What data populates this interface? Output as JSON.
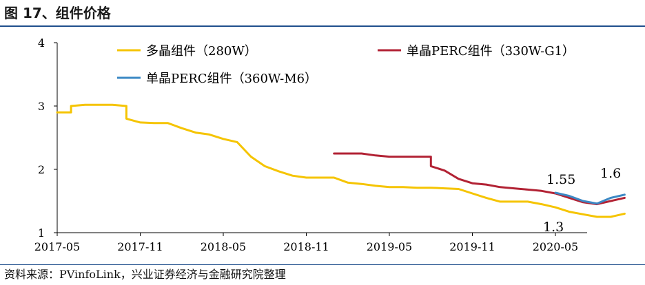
{
  "title": "图 17、组件价格",
  "source": "资料来源：PVinfoLink，兴业证券经济与金融研究院整理",
  "chart_data": {
    "type": "line",
    "title": "",
    "xlabel": "",
    "ylabel": "",
    "ylim": [
      1,
      4
    ],
    "yticks": [
      1,
      2,
      3,
      4
    ],
    "xlim": [
      "2017-05",
      "2020-10"
    ],
    "xticks": [
      "2017-05",
      "2017-11",
      "2018-05",
      "2018-11",
      "2019-05",
      "2019-11",
      "2020-05"
    ],
    "grid": false,
    "legend": "top",
    "series": [
      {
        "name": "多晶组件（280W）",
        "color": "#F5C400",
        "points": [
          [
            "2017-05",
            2.9
          ],
          [
            "2017-06",
            2.9
          ],
          [
            "2017-06",
            3.0
          ],
          [
            "2017-07",
            3.02
          ],
          [
            "2017-08",
            3.02
          ],
          [
            "2017-09",
            3.02
          ],
          [
            "2017-10",
            3.0
          ],
          [
            "2017-10",
            2.8
          ],
          [
            "2017-11",
            2.74
          ],
          [
            "2017-12",
            2.73
          ],
          [
            "2018-01",
            2.73
          ],
          [
            "2018-02",
            2.65
          ],
          [
            "2018-03",
            2.58
          ],
          [
            "2018-04",
            2.55
          ],
          [
            "2018-05",
            2.48
          ],
          [
            "2018-06",
            2.43
          ],
          [
            "2018-07",
            2.2
          ],
          [
            "2018-08",
            2.05
          ],
          [
            "2018-09",
            1.97
          ],
          [
            "2018-10",
            1.9
          ],
          [
            "2018-11",
            1.87
          ],
          [
            "2018-12",
            1.87
          ],
          [
            "2019-01",
            1.87
          ],
          [
            "2019-02",
            1.79
          ],
          [
            "2019-03",
            1.77
          ],
          [
            "2019-04",
            1.74
          ],
          [
            "2019-05",
            1.72
          ],
          [
            "2019-06",
            1.72
          ],
          [
            "2019-07",
            1.71
          ],
          [
            "2019-08",
            1.71
          ],
          [
            "2019-09",
            1.7
          ],
          [
            "2019-10",
            1.69
          ],
          [
            "2019-11",
            1.62
          ],
          [
            "2019-12",
            1.55
          ],
          [
            "2020-01",
            1.49
          ],
          [
            "2020-02",
            1.49
          ],
          [
            "2020-03",
            1.49
          ],
          [
            "2020-04",
            1.45
          ],
          [
            "2020-05",
            1.4
          ],
          [
            "2020-06",
            1.33
          ],
          [
            "2020-07",
            1.29
          ],
          [
            "2020-08",
            1.25
          ],
          [
            "2020-09",
            1.25
          ],
          [
            "2020-10",
            1.3
          ]
        ]
      },
      {
        "name": "单晶PERC组件（330W-G1）",
        "color": "#B22234",
        "points": [
          [
            "2019-01",
            2.25
          ],
          [
            "2019-03",
            2.25
          ],
          [
            "2019-04",
            2.22
          ],
          [
            "2019-05",
            2.2
          ],
          [
            "2019-06",
            2.2
          ],
          [
            "2019-07",
            2.2
          ],
          [
            "2019-08",
            2.2
          ],
          [
            "2019-08",
            2.05
          ],
          [
            "2019-09",
            1.98
          ],
          [
            "2019-10",
            1.85
          ],
          [
            "2019-11",
            1.78
          ],
          [
            "2019-12",
            1.76
          ],
          [
            "2020-01",
            1.72
          ],
          [
            "2020-02",
            1.7
          ],
          [
            "2020-03",
            1.68
          ],
          [
            "2020-04",
            1.66
          ],
          [
            "2020-05",
            1.62
          ],
          [
            "2020-06",
            1.55
          ],
          [
            "2020-07",
            1.48
          ],
          [
            "2020-08",
            1.45
          ],
          [
            "2020-09",
            1.5
          ],
          [
            "2020-10",
            1.55
          ]
        ]
      },
      {
        "name": "单晶PERC组件（360W-M6）",
        "color": "#3B88C4",
        "points": [
          [
            "2020-05",
            1.63
          ],
          [
            "2020-06",
            1.58
          ],
          [
            "2020-07",
            1.5
          ],
          [
            "2020-08",
            1.46
          ],
          [
            "2020-09",
            1.55
          ],
          [
            "2020-10",
            1.6
          ]
        ]
      }
    ],
    "annotations": [
      "1.55",
      "1.6",
      "1.3"
    ]
  }
}
